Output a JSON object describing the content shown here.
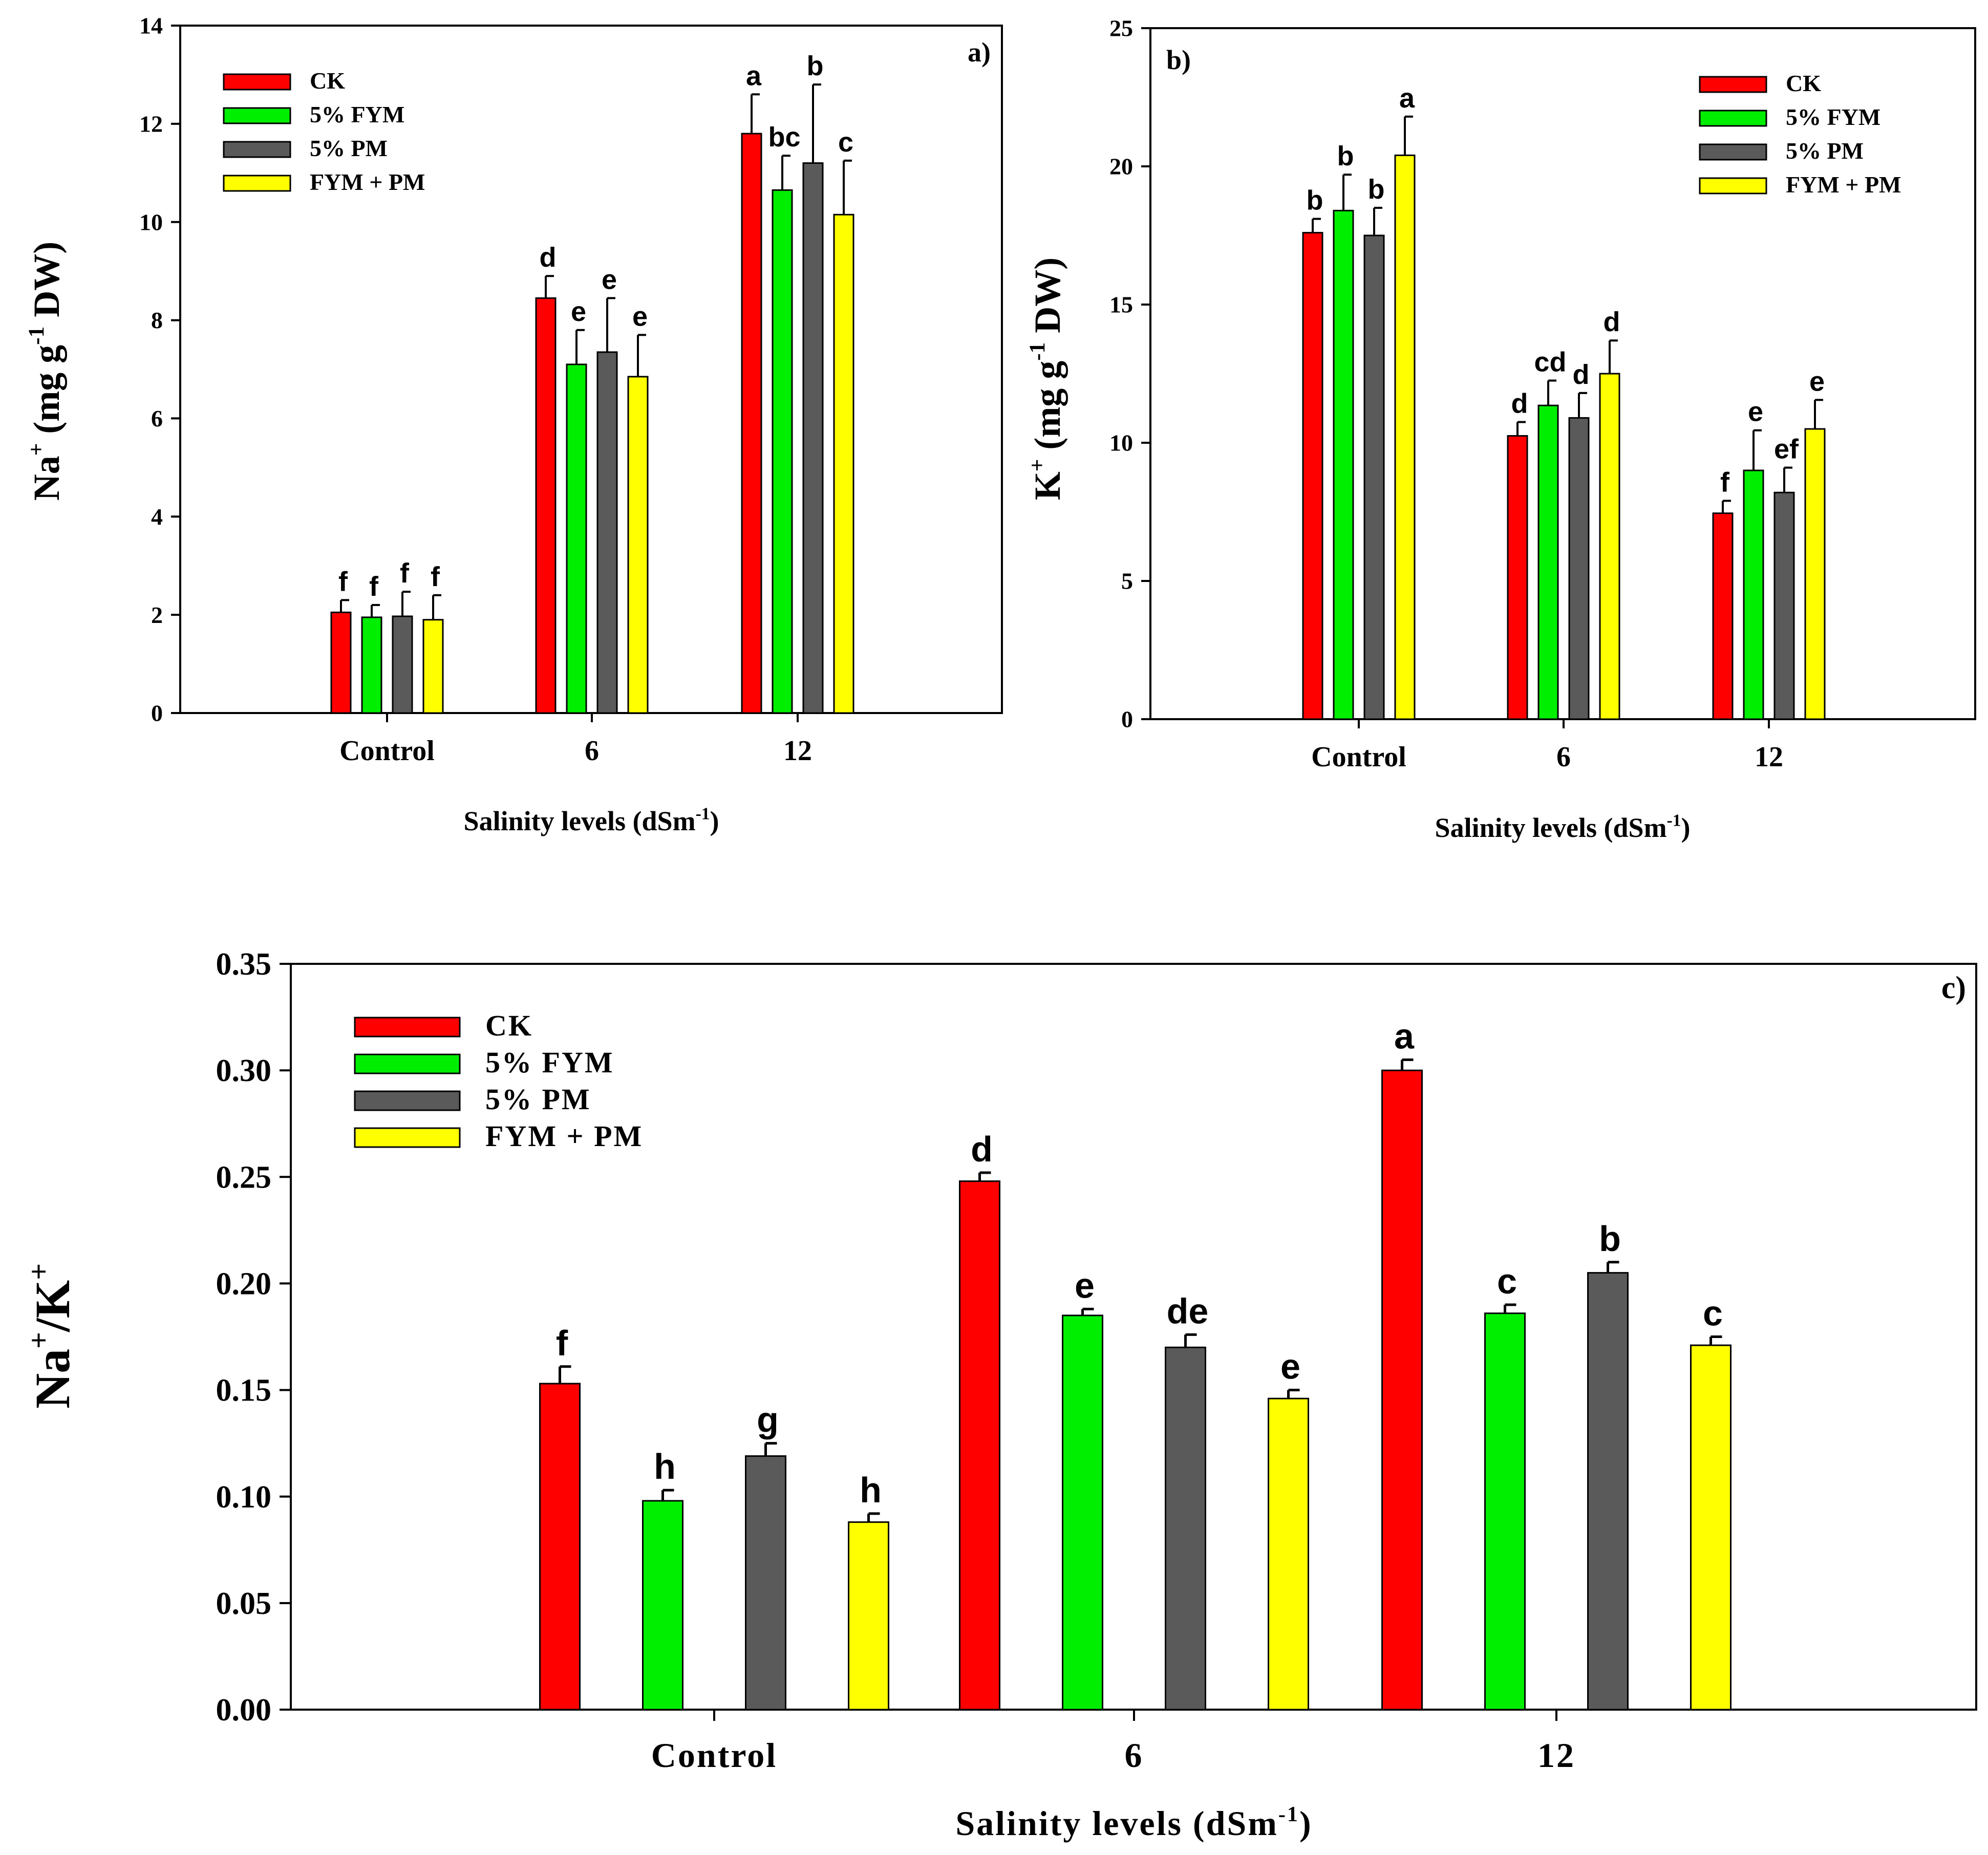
{
  "chart_data": [
    {
      "type": "bar",
      "panel_label": "a)",
      "title": "",
      "categories": [
        "Control",
        "6",
        "12"
      ],
      "xlabel": "Salinity levels (dSm",
      "xlabel_sup": "-1",
      "xlabel_end": ")",
      "ylabel_parts": [
        "Na",
        "+",
        " (mg g",
        "-1",
        " DW)"
      ],
      "ylim": [
        0,
        14
      ],
      "yticks": [
        0,
        2,
        4,
        6,
        8,
        10,
        12,
        14
      ],
      "tick_decimals": 0,
      "legend_position": "top-left",
      "series": [
        {
          "name": "CK",
          "color": "#ff0000",
          "values": [
            2.05,
            8.45,
            11.8
          ],
          "errors": [
            0.25,
            0.45,
            0.8
          ],
          "letters": [
            "f",
            "d",
            "a"
          ]
        },
        {
          "name": "5% FYM",
          "color": "#00ee00",
          "values": [
            1.95,
            7.1,
            10.65
          ],
          "errors": [
            0.25,
            0.7,
            0.7
          ],
          "letters": [
            "f",
            "e",
            "bc"
          ]
        },
        {
          "name": "5% PM",
          "color": "#5a5a5a",
          "values": [
            1.97,
            7.35,
            11.2
          ],
          "errors": [
            0.5,
            1.1,
            1.6
          ],
          "letters": [
            "f",
            "e",
            "b"
          ]
        },
        {
          "name": "FYM + PM",
          "color": "#ffff00",
          "values": [
            1.9,
            6.85,
            10.15
          ],
          "errors": [
            0.5,
            0.85,
            1.1
          ],
          "letters": [
            "f",
            "e",
            "c"
          ]
        }
      ]
    },
    {
      "type": "bar",
      "panel_label": "b)",
      "title": "",
      "categories": [
        "Control",
        "6",
        "12"
      ],
      "xlabel": "Salinity levels (dSm",
      "xlabel_sup": "-1",
      "xlabel_end": ")",
      "ylabel_parts": [
        "K",
        "+",
        " (mg g",
        "-1",
        " DW)"
      ],
      "ylim": [
        0,
        25
      ],
      "yticks": [
        0,
        5,
        10,
        15,
        20,
        25
      ],
      "tick_decimals": 0,
      "legend_position": "top-right",
      "series": [
        {
          "name": "CK",
          "color": "#ff0000",
          "values": [
            17.6,
            10.25,
            7.45
          ],
          "errors": [
            0.5,
            0.5,
            0.45
          ],
          "letters": [
            "b",
            "d",
            "f"
          ]
        },
        {
          "name": "5% FYM",
          "color": "#00ee00",
          "values": [
            18.4,
            11.35,
            9.0
          ],
          "errors": [
            1.3,
            0.9,
            1.45
          ],
          "letters": [
            "b",
            "cd",
            "e"
          ]
        },
        {
          "name": "5% PM",
          "color": "#5a5a5a",
          "values": [
            17.5,
            10.9,
            8.2
          ],
          "errors": [
            1.0,
            0.9,
            0.9
          ],
          "letters": [
            "b",
            "d",
            "ef"
          ]
        },
        {
          "name": "FYM + PM",
          "color": "#ffff00",
          "values": [
            20.4,
            12.5,
            10.5
          ],
          "errors": [
            1.4,
            1.2,
            1.05
          ],
          "letters": [
            "a",
            "d",
            "e"
          ]
        }
      ]
    },
    {
      "type": "bar",
      "panel_label": "c)",
      "title": "",
      "categories": [
        "Control",
        "6",
        "12"
      ],
      "xlabel": "Salinity levels (dSm",
      "xlabel_sup": "-1",
      "xlabel_end": ")",
      "ylabel_parts": [
        "Na",
        "+",
        "/K",
        "+",
        ""
      ],
      "ylim": [
        0,
        0.35
      ],
      "yticks": [
        0.0,
        0.05,
        0.1,
        0.15,
        0.2,
        0.25,
        0.3,
        0.35
      ],
      "tick_decimals": 2,
      "legend_position": "top-left",
      "series": [
        {
          "name": "CK",
          "color": "#ff0000",
          "values": [
            0.153,
            0.248,
            0.3
          ],
          "errors": [
            0.008,
            0.004,
            0.005
          ],
          "letters": [
            "f",
            "d",
            "a"
          ]
        },
        {
          "name": "5% FYM",
          "color": "#00ee00",
          "values": [
            0.098,
            0.185,
            0.186
          ],
          "errors": [
            0.005,
            0.003,
            0.004
          ],
          "letters": [
            "h",
            "e",
            "c"
          ]
        },
        {
          "name": "5% PM",
          "color": "#5a5a5a",
          "values": [
            0.119,
            0.17,
            0.205
          ],
          "errors": [
            0.006,
            0.006,
            0.005
          ],
          "letters": [
            "g",
            "de",
            "b"
          ]
        },
        {
          "name": "FYM + PM",
          "color": "#ffff00",
          "values": [
            0.088,
            0.146,
            0.171
          ],
          "errors": [
            0.004,
            0.004,
            0.004
          ],
          "letters": [
            "h",
            "e",
            "c"
          ]
        }
      ]
    }
  ]
}
